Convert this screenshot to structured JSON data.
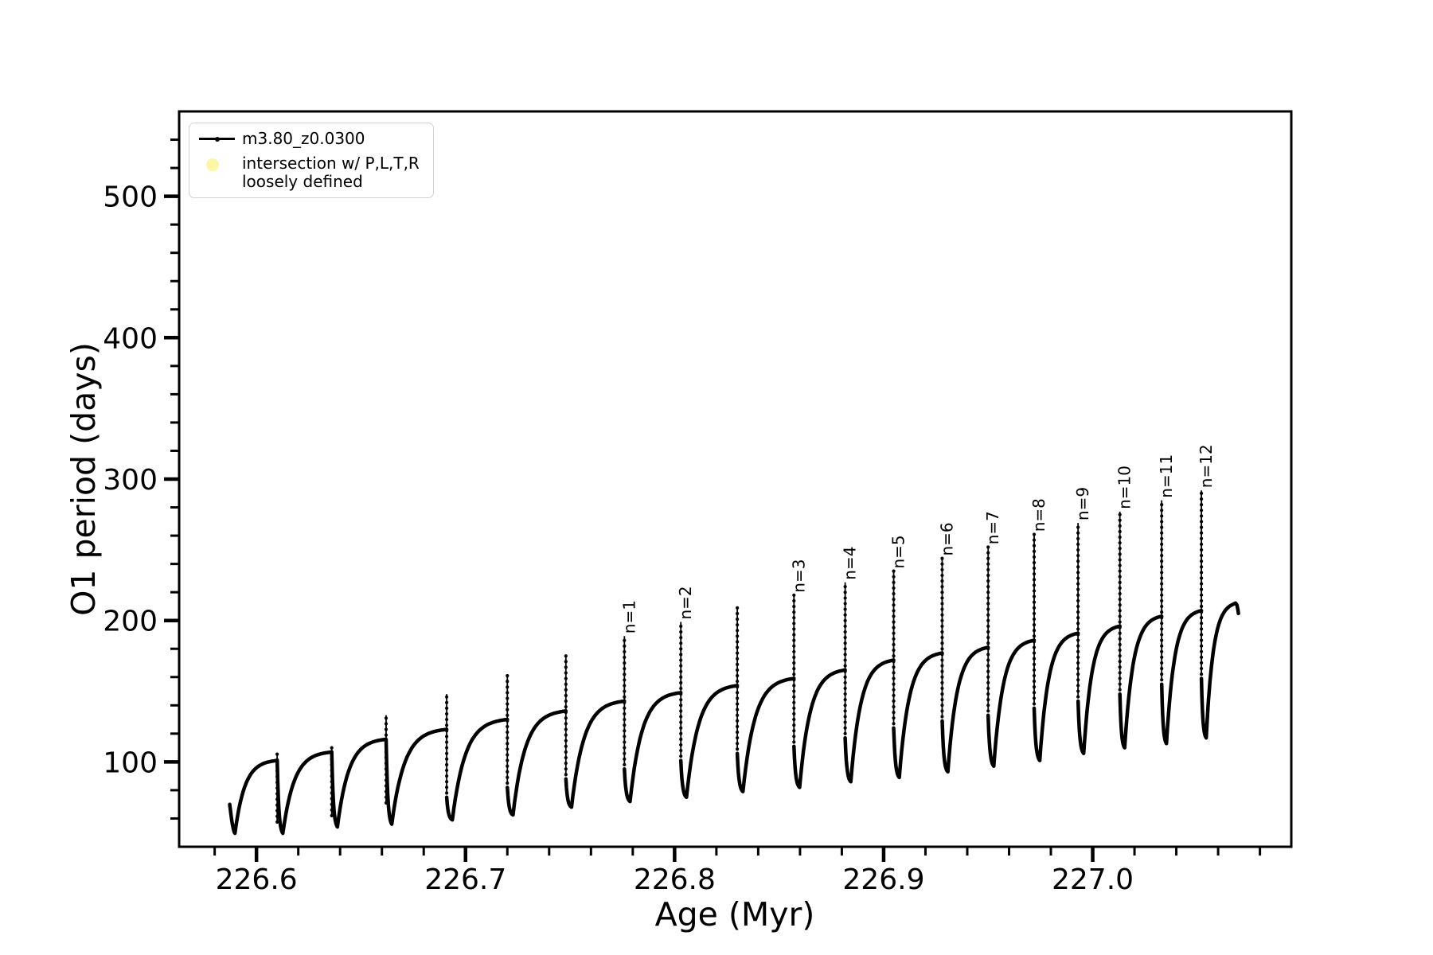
{
  "figure": {
    "background": "#ffffff"
  },
  "chart_data": {
    "type": "line",
    "title": "",
    "xlabel": "Age (Myr)",
    "ylabel": "O1 period (days)",
    "xlim": [
      226.563,
      227.095
    ],
    "ylim": [
      40,
      560
    ],
    "x_major_ticks": [
      226.6,
      226.7,
      226.8,
      226.9,
      227.0
    ],
    "x_tick_labels": [
      "226.6",
      "226.7",
      "226.8",
      "226.9",
      "227.0"
    ],
    "x_minor_start": 226.58,
    "x_minor_step": 0.02,
    "x_minor_count": 26,
    "y_major_ticks": [
      100,
      200,
      300,
      400,
      500
    ],
    "y_tick_labels": [
      "100",
      "200",
      "300",
      "400",
      "500"
    ],
    "y_minor_step": 20,
    "grid": false,
    "legend_loc": "upper left",
    "line_color": "#000000",
    "series_name": "m3.80_z0.0300",
    "start": {
      "age": 226.5872,
      "value": 70,
      "min_age": 226.5897,
      "min": 49.5
    },
    "teeth": [
      {
        "age": 226.6099,
        "plateau": 101,
        "spike": 106,
        "min_after": 49.5,
        "label": ""
      },
      {
        "age": 226.636,
        "plateau": 107,
        "spike": 111,
        "min_after": 54,
        "label": ""
      },
      {
        "age": 226.662,
        "plateau": 116,
        "spike": 133,
        "min_after": 56,
        "label": ""
      },
      {
        "age": 226.691,
        "plateau": 123,
        "spike": 148,
        "min_after": 59,
        "label": ""
      },
      {
        "age": 226.72,
        "plateau": 130,
        "spike": 162,
        "min_after": 62.5,
        "label": ""
      },
      {
        "age": 226.748,
        "plateau": 136,
        "spike": 175,
        "min_after": 68,
        "label": ""
      },
      {
        "age": 226.776,
        "plateau": 143,
        "spike": 189,
        "min_after": 72,
        "label": "n=1"
      },
      {
        "age": 226.803,
        "plateau": 149,
        "spike": 199,
        "min_after": 75,
        "label": "n=2"
      },
      {
        "age": 226.83,
        "plateau": 154,
        "spike": 209,
        "min_after": 79,
        "label": ""
      },
      {
        "age": 226.8571,
        "plateau": 159,
        "spike": 218,
        "min_after": 82,
        "label": "n=3"
      },
      {
        "age": 226.8816,
        "plateau": 165,
        "spike": 227,
        "min_after": 86,
        "label": "n=4"
      },
      {
        "age": 226.9048,
        "plateau": 172,
        "spike": 235,
        "min_after": 89,
        "label": "n=5"
      },
      {
        "age": 226.928,
        "plateau": 177,
        "spike": 244,
        "min_after": 93,
        "label": "n=6"
      },
      {
        "age": 226.95,
        "plateau": 181,
        "spike": 252,
        "min_after": 97,
        "label": "n=7"
      },
      {
        "age": 226.972,
        "plateau": 186,
        "spike": 261,
        "min_after": 101,
        "label": "n=8"
      },
      {
        "age": 226.993,
        "plateau": 191,
        "spike": 269,
        "min_after": 106,
        "label": "n=9"
      },
      {
        "age": 227.013,
        "plateau": 196,
        "spike": 277,
        "min_after": 110,
        "label": "n=10"
      },
      {
        "age": 227.033,
        "plateau": 203,
        "spike": 285,
        "min_after": 113,
        "label": "n=11"
      },
      {
        "age": 227.052,
        "plateau": 207,
        "spike": 292,
        "min_after": 117,
        "label": "n=12"
      }
    ],
    "end": {
      "peak_age": 227.0672,
      "peak": 211.5,
      "tail": [
        [
          227.0683,
          212.3
        ],
        [
          227.069,
          211
        ],
        [
          227.0695,
          207.5
        ],
        [
          227.0697,
          205
        ]
      ]
    }
  },
  "legend": {
    "entries": [
      {
        "label": "m3.80_z0.0300",
        "marker": "line-dot",
        "color": "#000000"
      },
      {
        "label": "intersection w/ P,L,T,R\nloosely defined",
        "marker": "circle",
        "color": "#fbf7a6"
      }
    ]
  }
}
